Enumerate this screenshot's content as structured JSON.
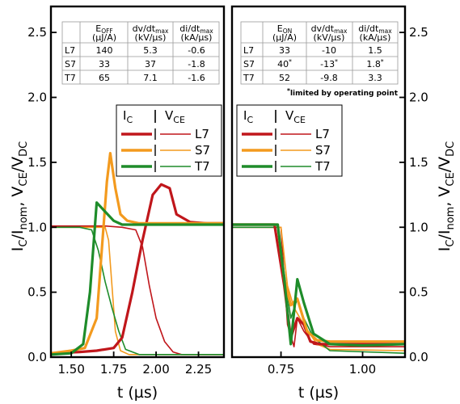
{
  "y_label": {
    "main": "I",
    "sub1": "C",
    "mid": "/I",
    "sub2": "nom",
    "comma": ", V",
    "sub3": "CE",
    "slash": "/V",
    "sub4": "DC"
  },
  "colors": {
    "L7": "#c0161b",
    "S7": "#f39a1e",
    "T7": "#1e8c2a"
  },
  "chart_data": [
    {
      "type": "line",
      "panel": "turn-off",
      "xlabel": "t (µs)",
      "xlim": [
        1.38,
        2.4
      ],
      "ylim": [
        0,
        2.7
      ],
      "x_ticks": [
        1.5,
        1.75,
        2.0,
        2.25
      ],
      "x_tick_labels": [
        "1.50",
        "1.75",
        "2.00",
        "2.25"
      ],
      "y_ticks": [
        0,
        0.5,
        1.0,
        1.5,
        2.0,
        2.5
      ],
      "y_tick_labels": [
        "0.0",
        "0.5",
        "1.0",
        "1.5",
        "2.0",
        "2.5"
      ],
      "series": [
        {
          "name": "L7",
          "quantity": "I_C",
          "x": [
            1.38,
            1.55,
            1.65,
            1.75,
            1.8,
            1.86,
            1.92,
            1.98,
            2.03,
            2.08,
            2.12,
            2.2,
            2.3,
            2.4
          ],
          "y": [
            0.03,
            0.04,
            0.05,
            0.07,
            0.15,
            0.5,
            0.9,
            1.25,
            1.33,
            1.3,
            1.1,
            1.04,
            1.03,
            1.03
          ]
        },
        {
          "name": "L7",
          "quantity": "V_CE",
          "x": [
            1.38,
            1.7,
            1.8,
            1.88,
            1.92,
            1.96,
            2.0,
            2.05,
            2.1,
            2.15,
            2.4
          ],
          "y": [
            1.01,
            1.01,
            1.0,
            0.98,
            0.85,
            0.55,
            0.3,
            0.12,
            0.04,
            0.02,
            0.02
          ]
        },
        {
          "name": "S7",
          "quantity": "I_C",
          "x": [
            1.38,
            1.5,
            1.58,
            1.65,
            1.69,
            1.71,
            1.73,
            1.76,
            1.79,
            1.83,
            1.9,
            2.4
          ],
          "y": [
            0.03,
            0.05,
            0.07,
            0.3,
            1.0,
            1.35,
            1.57,
            1.3,
            1.1,
            1.05,
            1.03,
            1.03
          ]
        },
        {
          "name": "S7",
          "quantity": "V_CE",
          "x": [
            1.38,
            1.7,
            1.72,
            1.74,
            1.76,
            1.79,
            1.84,
            2.4
          ],
          "y": [
            1.0,
            1.0,
            0.9,
            0.55,
            0.2,
            0.05,
            0.02,
            0.02
          ]
        },
        {
          "name": "T7",
          "quantity": "I_C",
          "x": [
            1.38,
            1.5,
            1.57,
            1.61,
            1.65,
            1.7,
            1.75,
            1.8,
            1.9,
            2.4
          ],
          "y": [
            0.02,
            0.03,
            0.1,
            0.5,
            1.19,
            1.12,
            1.05,
            1.02,
            1.02,
            1.02
          ]
        },
        {
          "name": "T7",
          "quantity": "V_CE",
          "x": [
            1.38,
            1.55,
            1.62,
            1.66,
            1.7,
            1.74,
            1.78,
            1.82,
            1.9,
            2.4
          ],
          "y": [
            1.0,
            1.0,
            0.98,
            0.82,
            0.58,
            0.38,
            0.2,
            0.06,
            0.02,
            0.02
          ]
        }
      ]
    },
    {
      "type": "line",
      "panel": "turn-on",
      "xlabel": "t (µs)",
      "xlim": [
        0.6,
        1.13
      ],
      "ylim": [
        0,
        2.7
      ],
      "x_ticks": [
        0.75,
        1.0
      ],
      "x_tick_labels": [
        "0.75",
        "1.00"
      ],
      "y_ticks": [
        0,
        0.5,
        1.0,
        1.5,
        2.0,
        2.5
      ],
      "y_tick_labels": [
        "0.0",
        "0.5",
        "1.0",
        "1.5",
        "2.0",
        "2.5"
      ],
      "series": [
        {
          "name": "L7",
          "quantity": "I_C",
          "x": [
            0.6,
            0.73,
            0.76,
            0.78,
            0.8,
            0.82,
            0.84,
            0.87,
            0.9,
            1.13
          ],
          "y": [
            1.02,
            1.02,
            0.55,
            0.15,
            0.3,
            0.25,
            0.12,
            0.1,
            0.1,
            0.1
          ]
        },
        {
          "name": "L7",
          "quantity": "V_CE",
          "x": [
            0.6,
            0.75,
            0.77,
            0.79,
            0.8,
            0.82,
            0.85,
            0.9,
            1.13
          ],
          "y": [
            1.0,
            1.0,
            0.25,
            0.08,
            0.3,
            0.2,
            0.1,
            0.08,
            0.08
          ]
        },
        {
          "name": "S7",
          "quantity": "I_C",
          "x": [
            0.6,
            0.74,
            0.76,
            0.78,
            0.8,
            0.83,
            0.86,
            0.9,
            1.13
          ],
          "y": [
            1.02,
            1.02,
            0.6,
            0.4,
            0.45,
            0.2,
            0.13,
            0.12,
            0.12
          ]
        },
        {
          "name": "S7",
          "quantity": "V_CE",
          "x": [
            0.6,
            0.75,
            0.77,
            0.79,
            0.82,
            0.86,
            0.9,
            1.13
          ],
          "y": [
            1.0,
            1.0,
            0.55,
            0.38,
            0.25,
            0.1,
            0.06,
            0.05
          ]
        },
        {
          "name": "T7",
          "quantity": "I_C",
          "x": [
            0.6,
            0.74,
            0.76,
            0.78,
            0.8,
            0.82,
            0.85,
            0.9,
            1.0,
            1.13
          ],
          "y": [
            1.02,
            1.02,
            0.6,
            0.1,
            0.6,
            0.42,
            0.18,
            0.1,
            0.09,
            0.1
          ]
        },
        {
          "name": "T7",
          "quantity": "V_CE",
          "x": [
            0.6,
            0.74,
            0.76,
            0.78,
            0.8,
            0.82,
            0.85,
            0.9,
            1.13
          ],
          "y": [
            1.0,
            1.0,
            0.65,
            0.3,
            0.45,
            0.3,
            0.15,
            0.05,
            0.03
          ]
        }
      ]
    }
  ],
  "legend": {
    "header_ic": "I",
    "header_ic_sub": "C",
    "header_vce": "V",
    "header_vce_sub": "CE",
    "items": [
      "L7",
      "S7",
      "T7"
    ]
  },
  "off_table": {
    "headers": [
      {
        "m": "E",
        "s": "OFF"
      },
      {
        "m": "dv/dt",
        "s": "max"
      },
      {
        "m": "di/dt",
        "s": "max"
      }
    ],
    "units": [
      "(µJ/A)",
      "(kV/µs)",
      "(kA/µs)"
    ],
    "rows": [
      {
        "label": "L7",
        "vals": [
          "140",
          "5.3",
          "-0.6"
        ]
      },
      {
        "label": "S7",
        "vals": [
          "33",
          "37",
          "-1.8"
        ]
      },
      {
        "label": "T7",
        "vals": [
          "65",
          "7.1",
          "-1.6"
        ]
      }
    ]
  },
  "on_table": {
    "headers": [
      {
        "m": "E",
        "s": "ON"
      },
      {
        "m": "dv/dt",
        "s": "max"
      },
      {
        "m": "di/dt",
        "s": "max"
      }
    ],
    "units": [
      "(µJ/A)",
      "(kV/µs)",
      "(kA/µs)"
    ],
    "rows": [
      {
        "label": "L7",
        "vals": [
          "33",
          "-10",
          "1.5"
        ]
      },
      {
        "label": "S7",
        "vals": [
          "40",
          "-13",
          "1.8"
        ],
        "marks": [
          "*",
          "*",
          "*"
        ]
      },
      {
        "label": "T7",
        "vals": [
          "52",
          "-9.8",
          "3.3"
        ]
      }
    ],
    "note_mark": "*",
    "note": "limited by operating point"
  }
}
